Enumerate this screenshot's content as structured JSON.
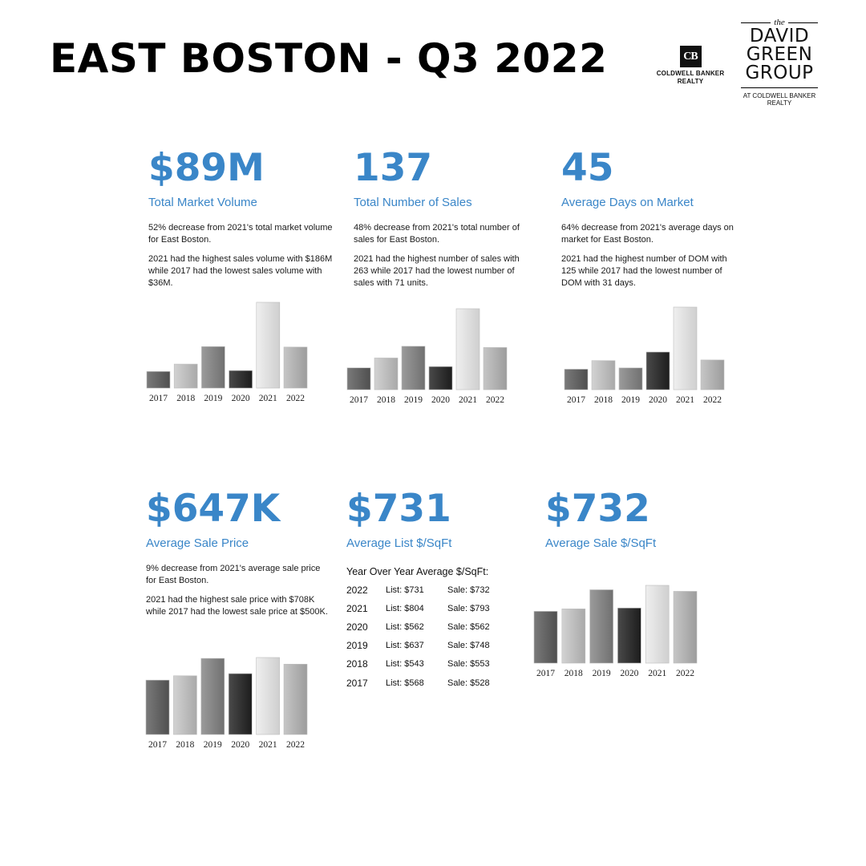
{
  "header": {
    "title": "EAST BOSTON - Q3 2022"
  },
  "brand": {
    "cb_mark": "CB",
    "cb_line1": "COLDWELL BANKER",
    "cb_line2": "REALTY",
    "dg_the": "the",
    "dg_line1": "DAVID",
    "dg_line2": "GREEN",
    "dg_line3": "GROUP",
    "dg_at1": "AT COLDWELL BANKER",
    "dg_at2": "REALTY"
  },
  "colors": {
    "accent": "#3a86c8"
  },
  "stats": {
    "volume": {
      "value": "$89M",
      "label": "Total Market Volume",
      "p1": "52% decrease from 2021's total market volume for East Boston.",
      "p2": "2021 had the highest sales volume with $186M while 2017 had the lowest sales volume with $36M."
    },
    "sales": {
      "value": "137",
      "label": "Total Number of Sales",
      "p1": "48% decrease from 2021's total number of sales for East Boston.",
      "p2": "2021 had the highest number of sales with 263 while 2017 had the lowest number of sales with 71 units."
    },
    "dom": {
      "value": "45",
      "label": "Average Days on Market",
      "p1": "64% decrease from 2021's average days on market for East Boston.",
      "p2": "2021 had the highest number of DOM with 125 while 2017 had the lowest number of DOM with 31 days."
    },
    "price": {
      "value": "$647K",
      "label": "Average Sale Price",
      "p1": "9% decrease from 2021's average sale price for East Boston.",
      "p2": "2021 had the highest sale price with $708K while 2017 had the lowest sale price at $500K."
    },
    "list_sqft": {
      "value": "$731",
      "label": "Average List $/SqFt"
    },
    "sale_sqft": {
      "value": "$732",
      "label": "Average Sale $/SqFt"
    }
  },
  "sqft_table": {
    "heading": "Year Over Year Average $/SqFt:",
    "rows": [
      {
        "year": "2022",
        "list": "List: $731",
        "sale": "Sale: $732"
      },
      {
        "year": "2021",
        "list": "List: $804",
        "sale": "Sale: $793"
      },
      {
        "year": "2020",
        "list": "List: $562",
        "sale": "Sale: $562"
      },
      {
        "year": "2019",
        "list": "List: $637",
        "sale": "Sale: $748"
      },
      {
        "year": "2018",
        "list": "List: $543",
        "sale": "Sale: $553"
      },
      {
        "year": "2017",
        "list": "List: $568",
        "sale": "Sale: $528"
      }
    ]
  },
  "chart_data": [
    {
      "type": "bar",
      "id": "volume",
      "categories": [
        "2017",
        "2018",
        "2019",
        "2020",
        "2021",
        "2022"
      ],
      "values": [
        36,
        52,
        90,
        38,
        186,
        89
      ],
      "ylim": [
        0,
        186
      ]
    },
    {
      "type": "bar",
      "id": "sales",
      "categories": [
        "2017",
        "2018",
        "2019",
        "2020",
        "2021",
        "2022"
      ],
      "values": [
        71,
        103,
        141,
        75,
        263,
        137
      ],
      "ylim": [
        0,
        263
      ]
    },
    {
      "type": "bar",
      "id": "dom",
      "categories": [
        "2017",
        "2018",
        "2019",
        "2020",
        "2021",
        "2022"
      ],
      "values": [
        31,
        44,
        33,
        57,
        125,
        45
      ],
      "ylim": [
        0,
        125
      ]
    },
    {
      "type": "bar",
      "id": "price",
      "categories": [
        "2017",
        "2018",
        "2019",
        "2020",
        "2021",
        "2022"
      ],
      "values": [
        500,
        540,
        700,
        560,
        708,
        647
      ],
      "ylim": [
        0,
        708
      ]
    },
    {
      "type": "bar",
      "id": "sale_sqft",
      "categories": [
        "2017",
        "2018",
        "2019",
        "2020",
        "2021",
        "2022"
      ],
      "values": [
        528,
        553,
        748,
        562,
        793,
        732
      ],
      "ylim": [
        0,
        793
      ]
    }
  ]
}
